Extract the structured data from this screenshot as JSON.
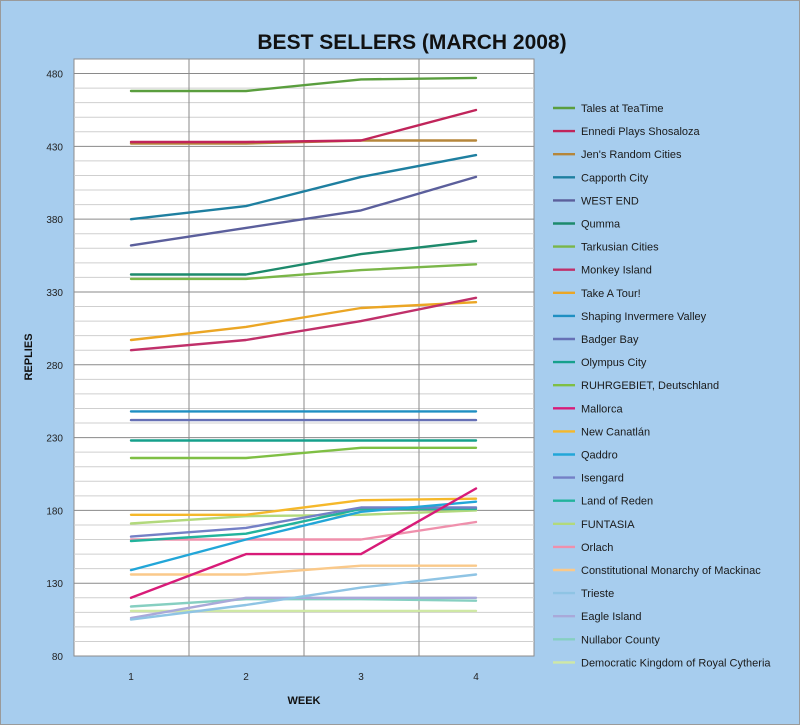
{
  "chart_data": {
    "type": "line",
    "title": "BEST SELLERS (MARCH 2008)",
    "xlabel": "WEEK",
    "ylabel": "REPLIES",
    "x": [
      1,
      2,
      3,
      4
    ],
    "x_ticks": [
      "1",
      "2",
      "3",
      "4"
    ],
    "ylim": [
      80,
      490
    ],
    "y_ticks": [
      "80",
      "130",
      "180",
      "230",
      "280",
      "330",
      "380",
      "430",
      "480"
    ],
    "grid": true,
    "legend_position": "right",
    "series": [
      {
        "name": "Tales at TeaTime",
        "color": "#5a9e3e",
        "values": [
          468,
          468,
          476,
          477
        ]
      },
      {
        "name": "Ennedi Plays  Shosaloza",
        "color": "#c0245a",
        "values": [
          433,
          433,
          434,
          455
        ]
      },
      {
        "name": "Jen's Random Cities",
        "color": "#b5863a",
        "values": [
          432,
          432,
          434,
          434
        ]
      },
      {
        "name": "Capporth City",
        "color": "#1e7fa0",
        "values": [
          380,
          389,
          409,
          424
        ]
      },
      {
        "name": "WEST END",
        "color": "#5b5f9c",
        "values": [
          362,
          374,
          386,
          409
        ]
      },
      {
        "name": "Qumma",
        "color": "#1d8a6c",
        "values": [
          342,
          342,
          356,
          365
        ]
      },
      {
        "name": "Tarkusian Cities",
        "color": "#7ab648",
        "values": [
          339,
          339,
          345,
          349
        ]
      },
      {
        "name": "Monkey Island",
        "color": "#c0306a",
        "values": [
          290,
          297,
          310,
          326
        ]
      },
      {
        "name": "Take A Tour!",
        "color": "#eba625",
        "values": [
          297,
          306,
          319,
          323
        ]
      },
      {
        "name": "Shaping Invermere Valley",
        "color": "#1f8fc2",
        "values": [
          248,
          248,
          248,
          248
        ]
      },
      {
        "name": "Badger Bay",
        "color": "#6670b5",
        "values": [
          242,
          242,
          242,
          242
        ]
      },
      {
        "name": "Olympus City",
        "color": "#16a08c",
        "values": [
          228,
          228,
          228,
          228
        ]
      },
      {
        "name": "RUHRGEBIET, Deutschland",
        "color": "#7fbf44",
        "values": [
          216,
          216,
          223,
          223
        ]
      },
      {
        "name": "Mallorca",
        "color": "#d81b78",
        "values": [
          120,
          150,
          150,
          195
        ]
      },
      {
        "name": "New Canatlán",
        "color": "#f5b82a",
        "values": [
          177,
          177,
          187,
          188
        ]
      },
      {
        "name": "Qaddro",
        "color": "#22a6d8",
        "values": [
          139,
          160,
          179,
          186
        ]
      },
      {
        "name": "Isengard",
        "color": "#7480c6",
        "values": [
          162,
          168,
          182,
          182
        ]
      },
      {
        "name": "Land of Reden",
        "color": "#22b39c",
        "values": [
          159,
          164,
          181,
          181
        ]
      },
      {
        "name": "FUNTASIA",
        "color": "#b2d97c",
        "values": [
          171,
          176,
          177,
          180
        ]
      },
      {
        "name": "Orlach",
        "color": "#ef90ac",
        "values": [
          160,
          160,
          160,
          172
        ]
      },
      {
        "name": "Constitutional Monarchy of Mackinac",
        "color": "#fac98a",
        "values": [
          136,
          136,
          142,
          142
        ]
      },
      {
        "name": "Trieste",
        "color": "#8fc4e4",
        "values": [
          105,
          115,
          127,
          136
        ]
      },
      {
        "name": "Eagle Island",
        "color": "#a9a9d9",
        "values": [
          106,
          120,
          120,
          120
        ]
      },
      {
        "name": "Nullabor County",
        "color": "#86cfc1",
        "values": [
          114,
          119,
          119,
          118
        ]
      },
      {
        "name": "Democratic Kingdom of Royal Cytheria",
        "color": "#cfe8a5",
        "values": [
          111,
          111,
          111,
          111
        ]
      }
    ]
  }
}
